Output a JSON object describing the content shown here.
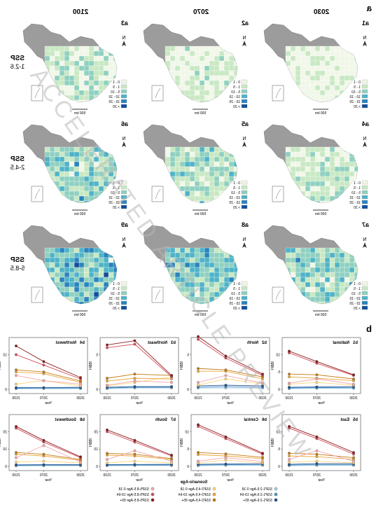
{
  "panel_a_label": "a",
  "panel_b_label": "b",
  "years": [
    "2030",
    "2070",
    "2100"
  ],
  "scenarios": [
    {
      "id": "ssp126",
      "label_top": "SSP",
      "label_bottom": "1-2.6",
      "panels": [
        "a1",
        "a2",
        "a3"
      ]
    },
    {
      "id": "ssp245",
      "label_top": "SSP",
      "label_bottom": "2-4.5",
      "panels": [
        "a4",
        "a5",
        "a6"
      ]
    },
    {
      "id": "ssp585",
      "label_top": "SSP",
      "label_bottom": "5-8.5",
      "panels": [
        "a7",
        "a8",
        "a9"
      ]
    }
  ],
  "map_legend": [
    "0 - 1",
    "1 - 5",
    "5 - 10",
    "10 - 15",
    "15 - 20",
    "> 20"
  ],
  "map_scale": "500 km",
  "north_arrow": "N",
  "colors": {
    "nodata": "#9c9c9c",
    "c0": "#f1f7e8",
    "c1": "#c8e8c4",
    "c2": "#8fd0c0",
    "c3": "#4eb3c8",
    "c4": "#2b84bd",
    "c5": "#124e9c"
  },
  "line_colors": {
    "ssp126_0_18": "#9ecae1",
    "ssp126_19_64": "#4a90c8",
    "ssp126_65": "#1c4f8f",
    "ssp245_0_18": "#fdd67a",
    "ssp245_19_64": "#e8a63a",
    "ssp245_65": "#c27a12",
    "ssp585_0_18": "#f4a6b0",
    "ssp585_19_64": "#d24d5b",
    "ssp585_65": "#8b1a1a"
  },
  "chart_data": [
    {
      "panel": "b1",
      "title": "National",
      "type": "line",
      "x": [
        2030,
        2070,
        2100
      ],
      "xlabel": "Year",
      "ylabel": "IBBH",
      "yticks": [
        0,
        5,
        10
      ],
      "series": [
        {
          "name": "SSP1-2.6 Age 0-18",
          "values": [
            0.3,
            0.3,
            0.2
          ]
        },
        {
          "name": "SSP1-2.6 Age 19-64",
          "values": [
            0.5,
            0.5,
            0.4
          ]
        },
        {
          "name": "SSP1-2.6 Age 65+",
          "values": [
            0.8,
            0.7,
            0.6
          ]
        },
        {
          "name": "SSP2-4.5 Age 0-18",
          "values": [
            1.2,
            2.0,
            1.5
          ]
        },
        {
          "name": "SSP2-4.5 Age 19-64",
          "values": [
            2.5,
            3.2,
            3.6
          ]
        },
        {
          "name": "SSP2-4.5 Age 65+",
          "values": [
            3.0,
            4.2,
            4.4
          ]
        },
        {
          "name": "SSP5-8.5 Age 0-18",
          "values": [
            1.5,
            3.0,
            1.8
          ]
        },
        {
          "name": "SSP5-8.5 Age 19-64",
          "values": [
            4.0,
            7.5,
            10.5
          ]
        },
        {
          "name": "SSP5-8.5 Age 65+",
          "values": [
            4.2,
            8.0,
            11.0
          ]
        }
      ]
    },
    {
      "panel": "b2",
      "title": "North",
      "type": "line",
      "x": [
        2030,
        2070,
        2100
      ],
      "xlabel": "Year",
      "ylabel": "IBBH",
      "yticks": [
        0,
        5
      ],
      "series": [
        {
          "name": "SSP1-2.6 Age 0-18",
          "values": [
            0.2,
            0.2,
            0.2
          ]
        },
        {
          "name": "SSP1-2.6 Age 19-64",
          "values": [
            0.3,
            0.4,
            0.3
          ]
        },
        {
          "name": "SSP1-2.6 Age 65+",
          "values": [
            0.5,
            0.6,
            0.5
          ]
        },
        {
          "name": "SSP2-4.5 Age 0-18",
          "values": [
            0.8,
            1.5,
            0.6
          ]
        },
        {
          "name": "SSP2-4.5 Age 19-64",
          "values": [
            1.5,
            2.6,
            2.6
          ]
        },
        {
          "name": "SSP2-4.5 Age 65+",
          "values": [
            1.8,
            2.8,
            3.0
          ]
        },
        {
          "name": "SSP5-8.5 Age 0-18",
          "values": [
            0.9,
            2.0,
            1.0
          ]
        },
        {
          "name": "SSP5-8.5 Age 19-64",
          "values": [
            2.0,
            4.5,
            7.2
          ]
        },
        {
          "name": "SSP5-8.5 Age 65+",
          "values": [
            2.2,
            4.8,
            7.6
          ]
        }
      ]
    },
    {
      "panel": "b3",
      "title": "Northeast",
      "type": "line",
      "x": [
        2030,
        2070,
        2100
      ],
      "xlabel": "Year",
      "ylabel": "IBBH",
      "yticks": [
        0,
        5
      ],
      "series": [
        {
          "name": "SSP1-2.6 Age 0-18",
          "values": [
            0.2,
            0.2,
            0.1
          ]
        },
        {
          "name": "SSP1-2.6 Age 19-64",
          "values": [
            0.3,
            0.3,
            0.2
          ]
        },
        {
          "name": "SSP1-2.6 Age 65+",
          "values": [
            0.4,
            0.4,
            0.3
          ]
        },
        {
          "name": "SSP2-4.5 Age 0-18",
          "values": [
            1.8,
            1.0,
            0.5
          ]
        },
        {
          "name": "SSP2-4.5 Age 19-64",
          "values": [
            1.5,
            1.6,
            1.2
          ]
        },
        {
          "name": "SSP2-4.5 Age 65+",
          "values": [
            2.0,
            2.2,
            1.6
          ]
        },
        {
          "name": "SSP5-8.5 Age 0-18",
          "values": [
            1.0,
            1.2,
            0.6
          ]
        },
        {
          "name": "SSP5-8.5 Age 19-64",
          "values": [
            1.8,
            6.5,
            6.0
          ]
        },
        {
          "name": "SSP5-8.5 Age 65+",
          "values": [
            2.0,
            7.0,
            6.4
          ]
        }
      ]
    },
    {
      "panel": "b4",
      "title": "Northwest",
      "type": "line",
      "x": [
        2030,
        2070,
        2100
      ],
      "xlabel": "Year",
      "ylabel": "IBBH",
      "yticks": [
        0,
        10
      ],
      "series": [
        {
          "name": "SSP1-2.6 Age 0-18",
          "values": [
            0.2,
            0.2,
            0.2
          ]
        },
        {
          "name": "SSP1-2.6 Age 19-64",
          "values": [
            0.4,
            0.4,
            0.3
          ]
        },
        {
          "name": "SSP1-2.6 Age 65+",
          "values": [
            0.6,
            0.5,
            0.5
          ]
        },
        {
          "name": "SSP2-4.5 Age 0-18",
          "values": [
            1.0,
            2.5,
            1.5
          ]
        },
        {
          "name": "SSP2-4.5 Age 19-64",
          "values": [
            2.0,
            4.5,
            5.0
          ]
        },
        {
          "name": "SSP2-4.5 Age 65+",
          "values": [
            2.4,
            5.0,
            5.6
          ]
        },
        {
          "name": "SSP5-8.5 Age 0-18",
          "values": [
            1.5,
            2.5,
            4.0
          ]
        },
        {
          "name": "SSP5-8.5 Age 19-64",
          "values": [
            3.0,
            7.0,
            10.0
          ]
        },
        {
          "name": "SSP5-8.5 Age 65+",
          "values": [
            3.4,
            8.0,
            12.5
          ]
        }
      ]
    },
    {
      "panel": "b5",
      "title": "East",
      "type": "line",
      "x": [
        2030,
        2070,
        2100
      ],
      "xlabel": "Year",
      "ylabel": "IBBH",
      "yticks": [
        0,
        5,
        10
      ],
      "series": [
        {
          "name": "SSP1-2.6 Age 0-18",
          "values": [
            0.3,
            0.3,
            0.2
          ]
        },
        {
          "name": "SSP1-2.6 Age 19-64",
          "values": [
            0.5,
            0.5,
            0.4
          ]
        },
        {
          "name": "SSP1-2.6 Age 65+",
          "values": [
            0.8,
            0.8,
            0.6
          ]
        },
        {
          "name": "SSP2-4.5 Age 0-18",
          "values": [
            1.0,
            1.5,
            1.2
          ]
        },
        {
          "name": "SSP2-4.5 Age 19-64",
          "values": [
            2.0,
            2.8,
            3.0
          ]
        },
        {
          "name": "SSP2-4.5 Age 65+",
          "values": [
            2.5,
            3.5,
            3.8
          ]
        },
        {
          "name": "SSP5-8.5 Age 0-18",
          "values": [
            1.5,
            4.5,
            2.0
          ]
        },
        {
          "name": "SSP5-8.5 Age 19-64",
          "values": [
            3.5,
            8.0,
            11.0
          ]
        },
        {
          "name": "SSP5-8.5 Age 65+",
          "values": [
            4.0,
            8.5,
            11.5
          ]
        }
      ]
    },
    {
      "panel": "b6",
      "title": "Central",
      "type": "line",
      "x": [
        2030,
        2070,
        2100
      ],
      "xlabel": "Year",
      "ylabel": "IBBH",
      "yticks": [
        0,
        5,
        10
      ],
      "series": [
        {
          "name": "SSP1-2.6 Age 0-18",
          "values": [
            0.3,
            0.3,
            0.2
          ]
        },
        {
          "name": "SSP1-2.6 Age 19-64",
          "values": [
            0.5,
            0.5,
            0.4
          ]
        },
        {
          "name": "SSP1-2.6 Age 65+",
          "values": [
            0.8,
            0.7,
            0.6
          ]
        },
        {
          "name": "SSP2-4.5 Age 0-18",
          "values": [
            1.0,
            1.8,
            1.0
          ]
        },
        {
          "name": "SSP2-4.5 Age 19-64",
          "values": [
            2.2,
            3.0,
            3.4
          ]
        },
        {
          "name": "SSP2-4.5 Age 65+",
          "values": [
            2.6,
            3.6,
            4.0
          ]
        },
        {
          "name": "SSP5-8.5 Age 0-18",
          "values": [
            1.4,
            2.5,
            1.5
          ]
        },
        {
          "name": "SSP5-8.5 Age 19-64",
          "values": [
            3.5,
            8.0,
            11.5
          ]
        },
        {
          "name": "SSP5-8.5 Age 65+",
          "values": [
            3.8,
            8.5,
            12.0
          ]
        }
      ]
    },
    {
      "panel": "b7",
      "title": "South",
      "type": "line",
      "x": [
        2030,
        2070,
        2100
      ],
      "xlabel": "Year",
      "ylabel": "IBBH",
      "yticks": [
        0,
        10,
        20
      ],
      "series": [
        {
          "name": "SSP1-2.6 Age 0-18",
          "values": [
            0.5,
            0.5,
            0.4
          ]
        },
        {
          "name": "SSP1-2.6 Age 19-64",
          "values": [
            0.8,
            0.8,
            0.7
          ]
        },
        {
          "name": "SSP1-2.6 Age 65+",
          "values": [
            1.2,
            1.1,
            1.0
          ]
        },
        {
          "name": "SSP2-4.5 Age 0-18",
          "values": [
            2.0,
            3.0,
            2.0
          ]
        },
        {
          "name": "SSP2-4.5 Age 19-64",
          "values": [
            4.0,
            6.0,
            6.5
          ]
        },
        {
          "name": "SSP2-4.5 Age 65+",
          "values": [
            4.5,
            7.0,
            7.5
          ]
        },
        {
          "name": "SSP5-8.5 Age 0-18",
          "values": [
            3.0,
            9.0,
            4.0
          ]
        },
        {
          "name": "SSP5-8.5 Age 19-64",
          "values": [
            6.0,
            14.0,
            20.0
          ]
        },
        {
          "name": "SSP5-8.5 Age 65+",
          "values": [
            6.5,
            15.0,
            21.0
          ]
        }
      ]
    },
    {
      "panel": "b8",
      "title": "Southwest",
      "type": "line",
      "x": [
        2030,
        2070,
        2100
      ],
      "xlabel": "Year",
      "ylabel": "IBBH",
      "yticks": [
        0,
        10,
        20
      ],
      "series": [
        {
          "name": "SSP1-2.6 Age 0-18",
          "values": [
            0.4,
            0.4,
            0.3
          ]
        },
        {
          "name": "SSP1-2.6 Age 19-64",
          "values": [
            0.7,
            0.7,
            0.6
          ]
        },
        {
          "name": "SSP1-2.6 Age 65+",
          "values": [
            1.0,
            1.0,
            0.9
          ]
        },
        {
          "name": "SSP2-4.5 Age 0-18",
          "values": [
            2.0,
            3.0,
            2.5
          ]
        },
        {
          "name": "SSP2-4.5 Age 19-64",
          "values": [
            3.5,
            6.0,
            7.0
          ]
        },
        {
          "name": "SSP2-4.5 Age 65+",
          "values": [
            4.0,
            7.0,
            8.0
          ]
        },
        {
          "name": "SSP5-8.5 Age 0-18",
          "values": [
            2.5,
            12.0,
            5.0
          ]
        },
        {
          "name": "SSP5-8.5 Age 19-64",
          "values": [
            5.0,
            14.0,
            22.0
          ]
        },
        {
          "name": "SSP5-8.5 Age 65+",
          "values": [
            5.5,
            15.0,
            23.0
          ]
        }
      ]
    }
  ],
  "legend": {
    "title": "Scenario-Age",
    "items": [
      "SSP1-2.6-Age 0-18",
      "SSP2-4.5-Age 0-18",
      "SSP5-8.5-Age 0-18",
      "SSP1-2.6-Age 19-64",
      "SSP2-4.5-Age 19-64",
      "SSP5-8.5-Age 19-64",
      "SSP1-2.6-Age 65+",
      "SSP2-4.5-Age 65+",
      "SSP5-8.5-Age 65+"
    ]
  },
  "watermark": "ACCELERATED ARTICLE PREVIEW"
}
